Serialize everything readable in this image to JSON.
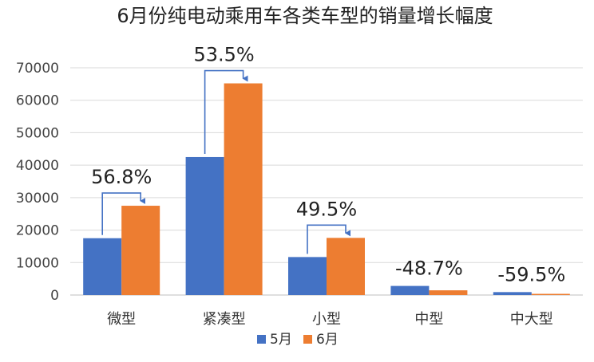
{
  "chart_data": {
    "type": "bar",
    "title": "6月份纯电动乘用车各类车型的销量增长幅度",
    "xlabel": "",
    "ylabel": "",
    "categories": [
      "微型",
      "紧凑型",
      "小型",
      "中型",
      "中大型"
    ],
    "series": [
      {
        "name": "5月",
        "color": "#4472C4",
        "values": [
          17500,
          42500,
          11700,
          2800,
          900
        ]
      },
      {
        "name": "6月",
        "color": "#ED7D31",
        "values": [
          27500,
          65200,
          17600,
          1450,
          360
        ]
      }
    ],
    "yticks": [
      0,
      10000,
      20000,
      30000,
      40000,
      50000,
      60000,
      70000
    ],
    "ylim": [
      0,
      70000
    ],
    "grid": true,
    "legend": "bottom",
    "annotations": [
      {
        "category": "微型",
        "label": "56.8%",
        "arrow": true
      },
      {
        "category": "紧凑型",
        "label": "53.5%",
        "arrow": true
      },
      {
        "category": "小型",
        "label": "49.5%",
        "arrow": true
      },
      {
        "category": "中型",
        "label": "-48.7%",
        "arrow": false
      },
      {
        "category": "中大型",
        "label": "-59.5%",
        "arrow": false
      }
    ]
  }
}
